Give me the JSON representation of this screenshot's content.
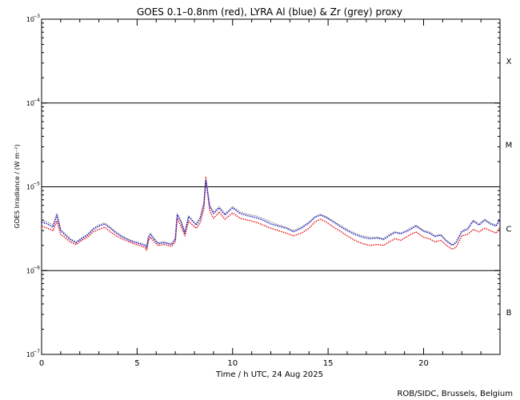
{
  "chart_data": {
    "type": "line",
    "title": "GOES 0.1–0.8nm (red), LYRA Al (blue) & Zr (grey) proxy",
    "xlabel": "Time / h UTC, 24 Aug 2025",
    "ylabel": "GOES Irradiance / (W m⁻²)",
    "credit": "ROB/SIDC, Brussels, Belgium",
    "y_scale": "log",
    "xlim": [
      0,
      24
    ],
    "ylim": [
      1e-07,
      0.001
    ],
    "x_ticks": [
      {
        "value": 0,
        "label": "0"
      },
      {
        "value": 5,
        "label": "5"
      },
      {
        "value": 10,
        "label": "10"
      },
      {
        "value": 15,
        "label": "15"
      },
      {
        "value": 20,
        "label": "20"
      }
    ],
    "y_ticks": [
      {
        "value": 1e-07,
        "base": "10",
        "exp": "−7"
      },
      {
        "value": 1e-06,
        "base": "10",
        "exp": "−6"
      },
      {
        "value": 1e-05,
        "base": "10",
        "exp": "−5"
      },
      {
        "value": 0.0001,
        "base": "10",
        "exp": "−4"
      },
      {
        "value": 0.001,
        "base": "10",
        "exp": "−3"
      }
    ],
    "class_lines": [
      1e-06,
      1e-05,
      0.0001
    ],
    "class_labels": [
      {
        "label": "X",
        "y": 0.00032
      },
      {
        "label": "M",
        "y": 3.2e-05
      },
      {
        "label": "C",
        "y": 3.2e-06
      },
      {
        "label": "B",
        "y": 3.2e-07
      }
    ],
    "grid": false,
    "colors": {
      "goes": "#e8141b",
      "lyra_al": "#1c1cc8",
      "lyra_zr": "#999999",
      "class_lines": "#000000"
    },
    "series": [
      {
        "color": "#e8141b",
        "x": [
          0,
          0.3,
          0.6,
          0.8,
          1.0,
          1.2,
          1.5,
          1.8,
          2.1,
          2.4,
          2.7,
          3.0,
          3.3,
          3.6,
          3.9,
          4.2,
          4.5,
          4.8,
          5.1,
          5.4,
          5.5,
          5.6,
          5.7,
          5.9,
          6.1,
          6.4,
          6.8,
          7.0,
          7.1,
          7.3,
          7.5,
          7.7,
          7.9,
          8.1,
          8.3,
          8.5,
          8.6,
          8.8,
          9.0,
          9.3,
          9.6,
          10.0,
          10.4,
          10.8,
          11.2,
          11.6,
          12.0,
          12.4,
          12.8,
          13.2,
          13.6,
          14.0,
          14.3,
          14.6,
          14.9,
          15.2,
          15.6,
          16.0,
          16.4,
          16.8,
          17.2,
          17.6,
          17.9,
          18.2,
          18.5,
          18.8,
          19.2,
          19.6,
          20.0,
          20.3,
          20.6,
          20.9,
          21.2,
          21.5,
          21.7,
          22.0,
          22.3,
          22.6,
          22.9,
          23.2,
          23.5,
          23.8,
          24
        ],
        "y": [
          3.4e-06,
          3.2e-06,
          3e-06,
          3.9e-06,
          2.7e-06,
          2.5e-06,
          2.2e-06,
          2.05e-06,
          2.3e-06,
          2.5e-06,
          2.9e-06,
          3.1e-06,
          3.3e-06,
          2.9e-06,
          2.6e-06,
          2.4e-06,
          2.25e-06,
          2.1e-06,
          2e-06,
          1.9e-06,
          1.75e-06,
          2.3e-06,
          2.5e-06,
          2.2e-06,
          2e-06,
          2.05e-06,
          1.95e-06,
          2.2e-06,
          4.2e-06,
          3.4e-06,
          2.6e-06,
          3.9e-06,
          3.5e-06,
          3.2e-06,
          3.7e-06,
          5.5e-06,
          1.3e-05,
          5.2e-06,
          4.2e-06,
          5e-06,
          4.1e-06,
          4.9e-06,
          4.2e-06,
          4e-06,
          3.8e-06,
          3.5e-06,
          3.2e-06,
          3e-06,
          2.8e-06,
          2.6e-06,
          2.8e-06,
          3.2e-06,
          3.8e-06,
          4.1e-06,
          3.8e-06,
          3.4e-06,
          3e-06,
          2.6e-06,
          2.3e-06,
          2.1e-06,
          2e-06,
          2.05e-06,
          2e-06,
          2.2e-06,
          2.4e-06,
          2.3e-06,
          2.6e-06,
          2.9e-06,
          2.5e-06,
          2.4e-06,
          2.2e-06,
          2.3e-06,
          2e-06,
          1.8e-06,
          1.9e-06,
          2.6e-06,
          2.7e-06,
          3.1e-06,
          2.9e-06,
          3.2e-06,
          3e-06,
          2.8e-06,
          3.3e-06
        ]
      },
      {
        "color": "#999999",
        "x": [
          0,
          0.3,
          0.6,
          0.8,
          1.0,
          1.2,
          1.5,
          1.8,
          2.1,
          2.4,
          2.7,
          3.0,
          3.3,
          3.6,
          3.9,
          4.2,
          4.5,
          4.8,
          5.1,
          5.4,
          5.5,
          5.6,
          5.7,
          5.9,
          6.1,
          6.4,
          6.8,
          7.0,
          7.1,
          7.3,
          7.5,
          7.7,
          7.9,
          8.1,
          8.3,
          8.5,
          8.6,
          8.8,
          9.0,
          9.3,
          9.6,
          10.0,
          10.4,
          10.8,
          11.2,
          11.6,
          12.0,
          12.4,
          12.8,
          13.2,
          13.6,
          14.0,
          14.3,
          14.6,
          14.9,
          15.2,
          15.6,
          16.0,
          16.4,
          16.8,
          17.2,
          17.6,
          17.9,
          18.2,
          18.5,
          18.8,
          19.2,
          19.6,
          20.0,
          20.3,
          20.6,
          20.9,
          21.2,
          21.5,
          21.7,
          22.0,
          22.3,
          22.6,
          22.9,
          23.2,
          23.5,
          23.8,
          24
        ],
        "y": [
          4e-06,
          3.8e-06,
          3.5e-06,
          4.8e-06,
          3.1e-06,
          2.8e-06,
          2.4e-06,
          2.2e-06,
          2.45e-06,
          2.7e-06,
          3.2e-06,
          3.5e-06,
          3.7e-06,
          3.3e-06,
          2.9e-06,
          2.6e-06,
          2.4e-06,
          2.25e-06,
          2.15e-06,
          2.05e-06,
          1.95e-06,
          2.6e-06,
          2.8e-06,
          2.4e-06,
          2.15e-06,
          2.2e-06,
          2.1e-06,
          2.4e-06,
          4.8e-06,
          3.9e-06,
          2.9e-06,
          4.5e-06,
          4e-06,
          3.6e-06,
          4.3e-06,
          6.5e-06,
          1.25e-05,
          6e-06,
          5e-06,
          5.8e-06,
          4.8e-06,
          5.8e-06,
          5e-06,
          4.7e-06,
          4.5e-06,
          4.2e-06,
          3.8e-06,
          3.5e-06,
          3.3e-06,
          3e-06,
          3.3e-06,
          3.8e-06,
          4.4e-06,
          4.7e-06,
          4.4e-06,
          4e-06,
          3.5e-06,
          3.1e-06,
          2.8e-06,
          2.6e-06,
          2.5e-06,
          2.5e-06,
          2.4e-06,
          2.7e-06,
          2.9e-06,
          2.8e-06,
          3.1e-06,
          3.5e-06,
          3e-06,
          2.9e-06,
          2.6e-06,
          2.7e-06,
          2.3e-06,
          2.05e-06,
          2.2e-06,
          3e-06,
          3.2e-06,
          4e-06,
          3.6e-06,
          4.1e-06,
          3.7e-06,
          3.5e-06,
          4.2e-06
        ]
      },
      {
        "color": "#1c1cc8",
        "x": [
          0,
          0.3,
          0.6,
          0.8,
          1.0,
          1.2,
          1.5,
          1.8,
          2.1,
          2.4,
          2.7,
          3.0,
          3.3,
          3.6,
          3.9,
          4.2,
          4.5,
          4.8,
          5.1,
          5.4,
          5.5,
          5.6,
          5.7,
          5.9,
          6.1,
          6.4,
          6.8,
          7.0,
          7.1,
          7.3,
          7.5,
          7.7,
          7.9,
          8.1,
          8.3,
          8.5,
          8.6,
          8.8,
          9.0,
          9.3,
          9.6,
          10.0,
          10.4,
          10.8,
          11.2,
          11.6,
          12.0,
          12.4,
          12.8,
          13.2,
          13.6,
          14.0,
          14.3,
          14.6,
          14.9,
          15.2,
          15.6,
          16.0,
          16.4,
          16.8,
          17.2,
          17.6,
          17.9,
          18.2,
          18.5,
          18.8,
          19.2,
          19.6,
          20.0,
          20.3,
          20.6,
          20.9,
          21.2,
          21.5,
          21.7,
          22.0,
          22.3,
          22.6,
          22.9,
          23.2,
          23.5,
          23.8,
          24
        ],
        "y": [
          3.8e-06,
          3.6e-06,
          3.3e-06,
          4.6e-06,
          3e-06,
          2.7e-06,
          2.35e-06,
          2.15e-06,
          2.4e-06,
          2.65e-06,
          3.1e-06,
          3.4e-06,
          3.6e-06,
          3.2e-06,
          2.8e-06,
          2.55e-06,
          2.35e-06,
          2.2e-06,
          2.1e-06,
          2e-06,
          1.9e-06,
          2.5e-06,
          2.7e-06,
          2.35e-06,
          2.1e-06,
          2.15e-06,
          2.05e-06,
          2.35e-06,
          4.6e-06,
          3.8e-06,
          2.8e-06,
          4.4e-06,
          3.9e-06,
          3.5e-06,
          4.2e-06,
          6.3e-06,
          1.2e-05,
          5.8e-06,
          4.8e-06,
          5.6e-06,
          4.6e-06,
          5.6e-06,
          4.8e-06,
          4.5e-06,
          4.3e-06,
          4e-06,
          3.6e-06,
          3.4e-06,
          3.2e-06,
          2.9e-06,
          3.2e-06,
          3.7e-06,
          4.3e-06,
          4.6e-06,
          4.3e-06,
          3.9e-06,
          3.4e-06,
          3e-06,
          2.7e-06,
          2.5e-06,
          2.4e-06,
          2.45e-06,
          2.35e-06,
          2.6e-06,
          2.85e-06,
          2.75e-06,
          3e-06,
          3.4e-06,
          2.95e-06,
          2.8e-06,
          2.55e-06,
          2.65e-06,
          2.25e-06,
          2e-06,
          2.15e-06,
          2.9e-06,
          3.1e-06,
          3.9e-06,
          3.5e-06,
          4e-06,
          3.6e-06,
          3.4e-06,
          4.1e-06
        ]
      }
    ]
  }
}
